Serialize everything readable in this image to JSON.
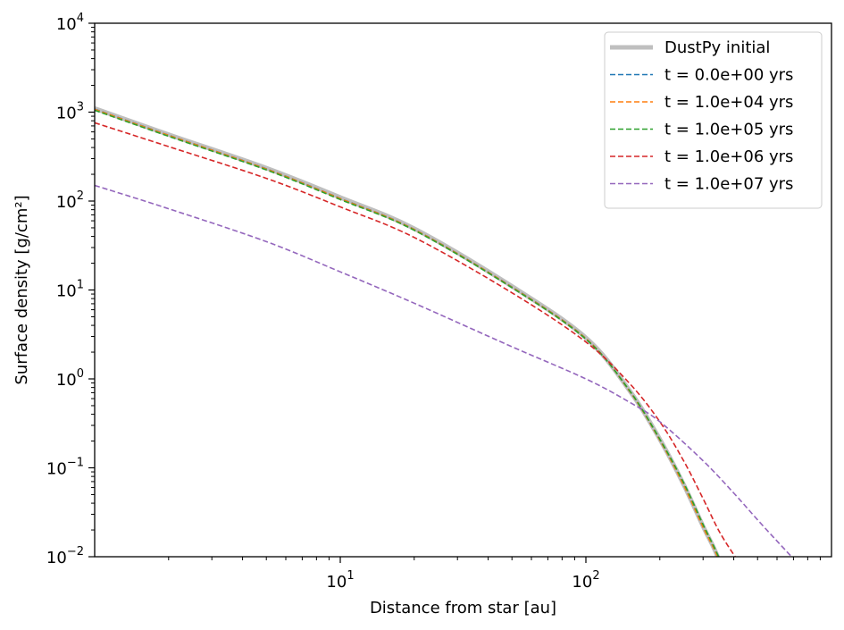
{
  "chart_data": {
    "type": "line",
    "xlabel": "Distance from star [au]",
    "ylabel": "Surface density [g/cm²]",
    "xscale": "log",
    "yscale": "log",
    "xlim": [
      1.0,
      1000.0
    ],
    "ylim": [
      0.01,
      10000
    ],
    "legend_position": "top-right",
    "grid": false,
    "x_ticks": [
      {
        "base": "10",
        "exp": "1",
        "value": 10
      },
      {
        "base": "10",
        "exp": "2",
        "value": 100
      }
    ],
    "y_ticks": [
      {
        "base": "10",
        "exp": "−2",
        "value": 0.01
      },
      {
        "base": "10",
        "exp": "−1",
        "value": 0.1
      },
      {
        "base": "10",
        "exp": "0",
        "value": 1
      },
      {
        "base": "10",
        "exp": "1",
        "value": 10
      },
      {
        "base": "10",
        "exp": "2",
        "value": 100
      },
      {
        "base": "10",
        "exp": "3",
        "value": 1000
      },
      {
        "base": "10",
        "exp": "4",
        "value": 10000
      }
    ],
    "series": [
      {
        "name": "DustPy initial",
        "color": "#bfbfbf",
        "dashed": false,
        "x": [
          1.0,
          2,
          5,
          10,
          20,
          50,
          100,
          150,
          200,
          250,
          300,
          330,
          345
        ],
        "y": [
          1100,
          560,
          235,
          110,
          49,
          11,
          2.9,
          0.75,
          0.21,
          0.065,
          0.022,
          0.013,
          0.0098
        ]
      },
      {
        "name": "t = 0.0e+00 yrs",
        "color": "#1f77b4",
        "dashed": true,
        "x": [
          1.0,
          2,
          5,
          10,
          20,
          50,
          100,
          150,
          200,
          250,
          300,
          330,
          345
        ],
        "y": [
          1080,
          550,
          230,
          107,
          48,
          10.8,
          2.85,
          0.74,
          0.205,
          0.064,
          0.0215,
          0.0128,
          0.0097
        ]
      },
      {
        "name": "t = 1.0e+04 yrs",
        "color": "#ff7f0e",
        "dashed": true,
        "x": [
          1.0,
          2,
          5,
          10,
          20,
          50,
          100,
          150,
          200,
          250,
          300,
          330,
          345
        ],
        "y": [
          1075,
          548,
          229,
          106.5,
          47.8,
          10.75,
          2.84,
          0.74,
          0.205,
          0.064,
          0.0215,
          0.0128,
          0.0097
        ]
      },
      {
        "name": "t = 1.0e+05 yrs",
        "color": "#2ca02c",
        "dashed": true,
        "x": [
          1.0,
          2,
          5,
          10,
          20,
          50,
          100,
          150,
          200,
          250,
          300,
          330,
          350
        ],
        "y": [
          1050,
          535,
          224,
          104,
          47,
          10.6,
          2.8,
          0.75,
          0.21,
          0.068,
          0.023,
          0.0135,
          0.0095
        ]
      },
      {
        "name": "t = 1.0e+06 yrs",
        "color": "#d62728",
        "dashed": true,
        "x": [
          1.0,
          2,
          5,
          10,
          20,
          50,
          100,
          150,
          200,
          250,
          300,
          350,
          410
        ],
        "y": [
          760,
          410,
          180,
          86,
          39,
          9.3,
          2.6,
          0.9,
          0.33,
          0.12,
          0.045,
          0.019,
          0.0095
        ]
      },
      {
        "name": "t = 1.0e+07 yrs",
        "color": "#9467bd",
        "dashed": true,
        "x": [
          1.0,
          2,
          5,
          10,
          20,
          50,
          100,
          150,
          200,
          300,
          400,
          500,
          600,
          700
        ],
        "y": [
          150,
          82,
          35,
          16,
          7.1,
          2.3,
          1.0,
          0.55,
          0.33,
          0.12,
          0.052,
          0.026,
          0.015,
          0.0095
        ]
      }
    ]
  }
}
